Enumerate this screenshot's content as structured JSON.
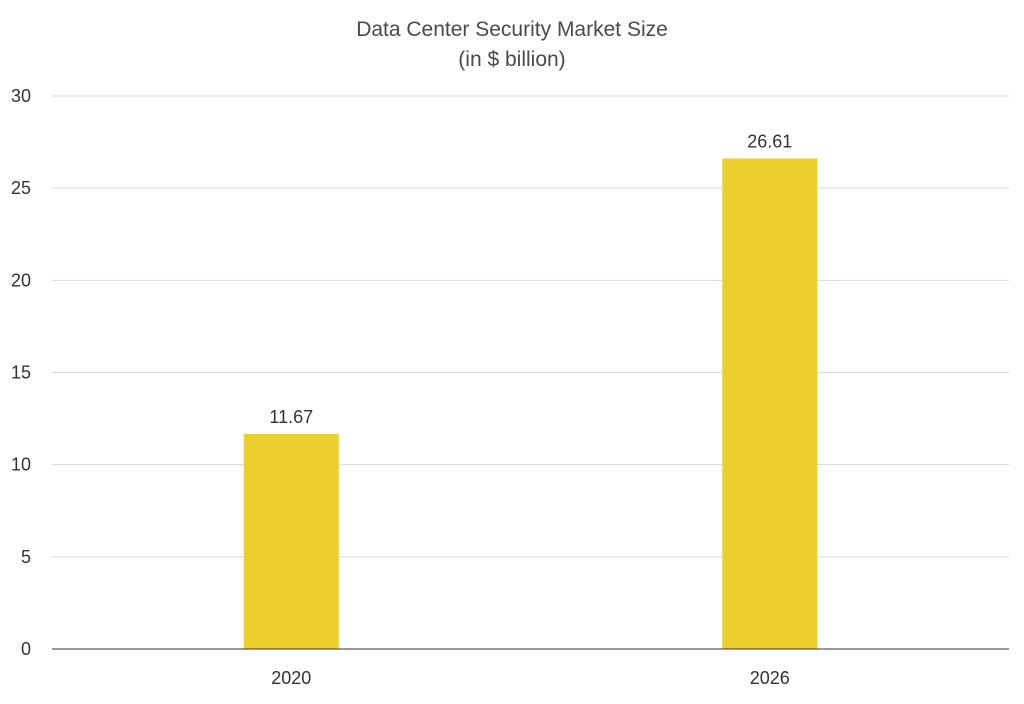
{
  "chart_data": {
    "type": "bar",
    "title": "Data Center Security Market Size",
    "subtitle": "(in $ billion)",
    "xlabel": "",
    "ylabel": "",
    "categories": [
      "2020",
      "2026"
    ],
    "values": [
      11.67,
      26.61
    ],
    "data_labels": [
      "11.67",
      "26.61"
    ],
    "ylim": [
      0,
      30
    ],
    "yticks": [
      0,
      5,
      10,
      15,
      20,
      25,
      30
    ],
    "ytick_labels": [
      "0",
      "5",
      "10",
      "15",
      "20",
      "25",
      "30"
    ],
    "grid": true,
    "legend": "none",
    "bar_color": "#ebcf2e"
  }
}
